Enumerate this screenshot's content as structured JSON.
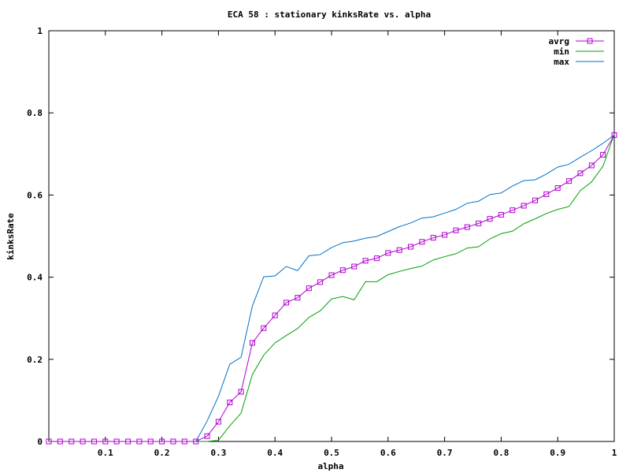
{
  "chart_data": {
    "type": "line",
    "title": "ECA 58 : stationary kinksRate vs. alpha",
    "xlabel": "alpha",
    "ylabel": "kinksRate",
    "xlim": [
      0.0,
      1.0
    ],
    "ylim": [
      0,
      1
    ],
    "x_ticks": [
      0.1,
      0.2,
      0.3,
      0.4,
      0.5,
      0.6,
      0.7,
      0.8,
      0.9,
      1
    ],
    "x_tick_labels": [
      "0.1",
      "0.2",
      "0.3",
      "0.4",
      "0.5",
      "0.6",
      "0.7",
      "0.8",
      "0.9",
      "1"
    ],
    "y_ticks": [
      0,
      0.2,
      0.4,
      0.6,
      0.8,
      1
    ],
    "y_tick_labels": [
      "0",
      "0.2",
      "0.4",
      "0.6",
      "0.8",
      "1"
    ],
    "grid": false,
    "legend_position": "top-right",
    "x": [
      0.0,
      0.02,
      0.04,
      0.06,
      0.08,
      0.1,
      0.12,
      0.14,
      0.16,
      0.18,
      0.2,
      0.22,
      0.24,
      0.26,
      0.28,
      0.3,
      0.32,
      0.34,
      0.36,
      0.38,
      0.4,
      0.42,
      0.44,
      0.46,
      0.48,
      0.5,
      0.52,
      0.54,
      0.56,
      0.58,
      0.6,
      0.62,
      0.64,
      0.66,
      0.68,
      0.7,
      0.72,
      0.74,
      0.76,
      0.78,
      0.8,
      0.82,
      0.84,
      0.86,
      0.88,
      0.9,
      0.92,
      0.94,
      0.96,
      0.98,
      1.0
    ],
    "series": [
      {
        "name": "avrg",
        "color": "#b000d0",
        "marker": "square",
        "values": [
          0,
          0,
          0,
          0,
          0,
          0,
          0,
          0,
          0,
          0,
          0,
          0,
          0,
          0,
          0.013,
          0.048,
          0.095,
          0.121,
          0.24,
          0.276,
          0.307,
          0.338,
          0.35,
          0.373,
          0.388,
          0.405,
          0.417,
          0.426,
          0.44,
          0.446,
          0.459,
          0.466,
          0.474,
          0.486,
          0.496,
          0.503,
          0.514,
          0.522,
          0.531,
          0.542,
          0.552,
          0.563,
          0.574,
          0.587,
          0.602,
          0.617,
          0.634,
          0.653,
          0.672,
          0.698,
          0.746
        ]
      },
      {
        "name": "min",
        "color": "#00a000",
        "marker": "none",
        "values": [
          0,
          0,
          0,
          0,
          0,
          0,
          0,
          0,
          0,
          0,
          0,
          0,
          0,
          0,
          0,
          0.003,
          0.038,
          0.069,
          0.163,
          0.21,
          0.24,
          0.258,
          0.275,
          0.302,
          0.318,
          0.347,
          0.353,
          0.345,
          0.389,
          0.389,
          0.406,
          0.414,
          0.421,
          0.427,
          0.442,
          0.45,
          0.457,
          0.471,
          0.474,
          0.493,
          0.506,
          0.512,
          0.53,
          0.542,
          0.555,
          0.565,
          0.572,
          0.611,
          0.632,
          0.67,
          0.748
        ]
      },
      {
        "name": "max",
        "color": "#0070c8",
        "marker": "none",
        "values": [
          0,
          0,
          0,
          0,
          0,
          0,
          0,
          0,
          0,
          0,
          0,
          0,
          0,
          0,
          0.05,
          0.11,
          0.188,
          0.205,
          0.33,
          0.401,
          0.403,
          0.426,
          0.416,
          0.452,
          0.455,
          0.472,
          0.484,
          0.488,
          0.495,
          0.499,
          0.511,
          0.523,
          0.532,
          0.544,
          0.547,
          0.556,
          0.565,
          0.58,
          0.585,
          0.601,
          0.605,
          0.622,
          0.635,
          0.637,
          0.651,
          0.668,
          0.675,
          0.692,
          0.708,
          0.726,
          0.746
        ]
      }
    ]
  }
}
